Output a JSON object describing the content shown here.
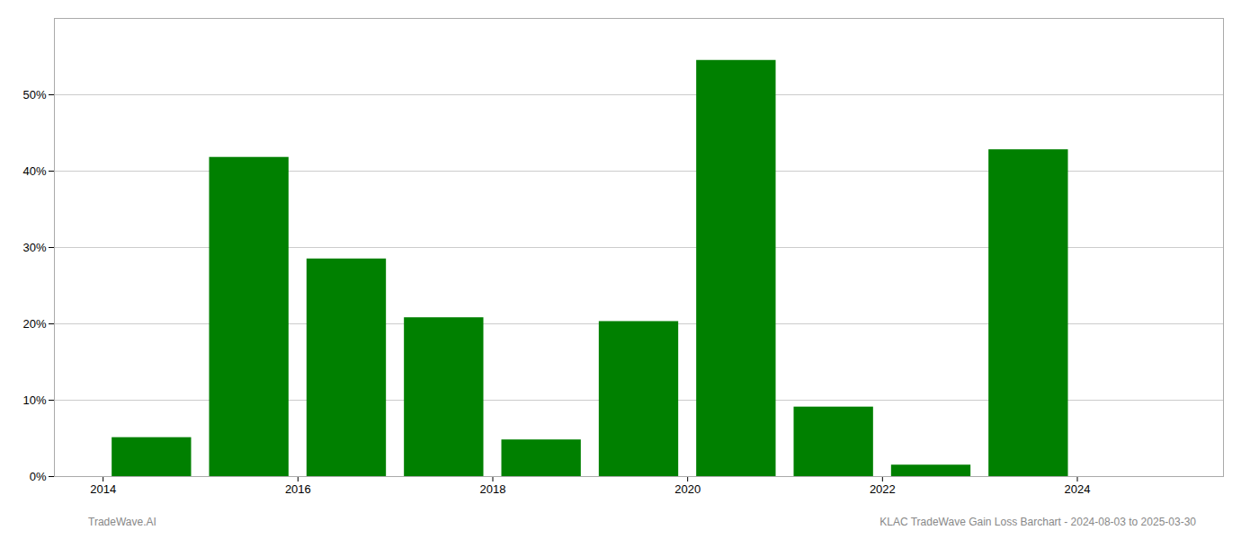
{
  "chart_data": {
    "type": "bar",
    "x": [
      2014,
      2015,
      2016,
      2017,
      2018,
      2019,
      2020,
      2021,
      2022,
      2023,
      2024
    ],
    "values": [
      0.051,
      0.418,
      0.285,
      0.208,
      0.048,
      0.203,
      0.545,
      0.091,
      0.015,
      0.428,
      0.0
    ],
    "color": "#008000",
    "xlim": [
      2013.5,
      2025.5
    ],
    "xticks": [
      2014,
      2016,
      2018,
      2020,
      2022,
      2024
    ],
    "ylim": [
      0,
      0.6
    ],
    "yticks": [
      {
        "value": 0.0,
        "label": "0%"
      },
      {
        "value": 0.1,
        "label": "10%"
      },
      {
        "value": 0.2,
        "label": "20%"
      },
      {
        "value": 0.3,
        "label": "30%"
      },
      {
        "value": 0.4,
        "label": "40%"
      },
      {
        "value": 0.5,
        "label": "50%"
      }
    ],
    "grid": true,
    "annotations": [
      "TradeWave.AI",
      "KLAC TradeWave Gain Loss Barchart - 2024-08-03 to 2025-03-30"
    ]
  }
}
